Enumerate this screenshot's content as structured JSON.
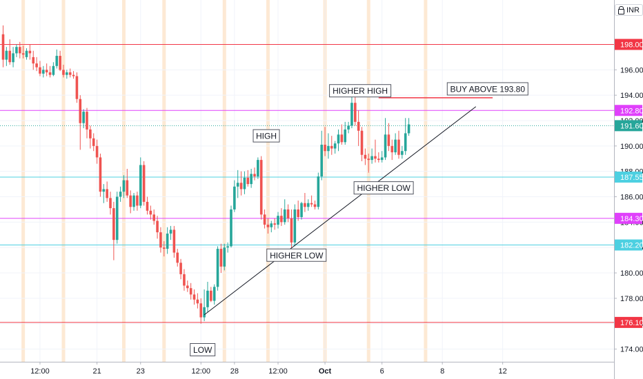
{
  "header": {
    "currency": "INR",
    "currency_icon": "lock-icon"
  },
  "colors": {
    "up": "#26a69a",
    "down": "#ef5350",
    "red_line": "#f23645",
    "magenta_line": "#e040fb",
    "cyan_line": "#4dd0e1",
    "session_band": "#fde9d4",
    "grid": "#f0f3fa",
    "axis_text": "#131722"
  },
  "chart_data": {
    "type": "candlestick",
    "y_range": [
      173,
      201.5
    ],
    "y_ticks": [
      174,
      176,
      178,
      180,
      182,
      184,
      186,
      188,
      190,
      192,
      194,
      196,
      198
    ],
    "y_tick_labels": [
      "174.00",
      "176.00",
      "178.00",
      "180.00",
      "182.00",
      "184.00",
      "186.00",
      "188.00",
      "190.00",
      "192.00",
      "194.00",
      "196.00",
      "198.00"
    ],
    "x_ticks": [
      "12:00",
      "21",
      "23",
      "12:00",
      "28",
      "12:00",
      "Oct",
      "6",
      "8",
      "12"
    ],
    "candles": [
      [
        198.8,
        199.5,
        196.2,
        196.8
      ],
      [
        196.8,
        197.8,
        196.3,
        197.5
      ],
      [
        197.5,
        198.4,
        196.4,
        196.6
      ],
      [
        196.6,
        197.8,
        196.2,
        197.3
      ],
      [
        197.3,
        198.0,
        197.0,
        197.8
      ],
      [
        197.8,
        198.2,
        196.9,
        197.3
      ],
      [
        197.3,
        197.9,
        196.9,
        197.2
      ],
      [
        197.0,
        197.7,
        196.8,
        197.5
      ],
      [
        197.5,
        198.0,
        196.8,
        197.3
      ],
      [
        197.0,
        197.5,
        196.0,
        196.5
      ],
      [
        196.5,
        197.0,
        195.9,
        196.2
      ],
      [
        196.2,
        196.7,
        195.5,
        195.7
      ],
      [
        195.7,
        196.3,
        195.4,
        196.0
      ],
      [
        196.0,
        196.5,
        195.5,
        195.8
      ],
      [
        195.8,
        196.3,
        195.4,
        195.6
      ],
      [
        195.6,
        196.6,
        195.5,
        196.3
      ],
      [
        196.3,
        197.6,
        196.1,
        197.1
      ],
      [
        197.1,
        197.5,
        195.9,
        196.0
      ],
      [
        196.0,
        196.4,
        195.4,
        195.6
      ],
      [
        195.6,
        196.0,
        195.3,
        195.8
      ],
      [
        195.8,
        196.1,
        195.4,
        195.6
      ],
      [
        195.6,
        195.9,
        195.3,
        195.5
      ],
      [
        195.5,
        195.8,
        193.4,
        193.7
      ],
      [
        193.7,
        194.0,
        189.7,
        191.8
      ],
      [
        191.8,
        192.9,
        191.4,
        192.7
      ],
      [
        192.7,
        193.0,
        190.6,
        191.3
      ],
      [
        191.3,
        191.6,
        189.8,
        190.6
      ],
      [
        190.6,
        191.0,
        189.6,
        190.0
      ],
      [
        190.0,
        190.5,
        188.6,
        189.1
      ],
      [
        189.1,
        189.4,
        186.0,
        186.4
      ],
      [
        186.4,
        187.0,
        185.5,
        186.6
      ],
      [
        186.6,
        187.2,
        185.6,
        185.9
      ],
      [
        185.9,
        186.4,
        184.6,
        185.1
      ],
      [
        185.1,
        185.6,
        181.0,
        182.6
      ],
      [
        182.6,
        186.4,
        182.3,
        186.0
      ],
      [
        186.0,
        186.8,
        185.6,
        186.4
      ],
      [
        186.4,
        187.7,
        185.9,
        187.3
      ],
      [
        187.3,
        188.2,
        185.9,
        186.1
      ],
      [
        186.1,
        186.5,
        184.7,
        185.2
      ],
      [
        185.2,
        186.3,
        184.9,
        186.1
      ],
      [
        186.1,
        186.4,
        184.9,
        185.3
      ],
      [
        185.3,
        189.1,
        185.1,
        188.5
      ],
      [
        188.5,
        188.8,
        185.3,
        185.6
      ],
      [
        185.6,
        186.0,
        184.6,
        184.9
      ],
      [
        184.9,
        185.3,
        184.2,
        184.6
      ],
      [
        184.6,
        185.0,
        183.8,
        184.1
      ],
      [
        184.1,
        184.5,
        182.7,
        183.2
      ],
      [
        183.2,
        183.6,
        181.6,
        182.0
      ],
      [
        182.0,
        182.5,
        181.3,
        181.9
      ],
      [
        181.9,
        183.6,
        181.5,
        183.1
      ],
      [
        183.1,
        183.7,
        182.6,
        183.4
      ],
      [
        183.4,
        183.7,
        181.2,
        181.6
      ],
      [
        181.6,
        181.9,
        180.5,
        180.8
      ],
      [
        180.8,
        181.1,
        179.5,
        179.9
      ],
      [
        179.9,
        180.3,
        178.6,
        179.0
      ],
      [
        179.0,
        179.4,
        178.5,
        178.8
      ],
      [
        178.8,
        179.2,
        177.9,
        178.3
      ],
      [
        178.3,
        178.7,
        177.5,
        177.9
      ],
      [
        177.9,
        178.4,
        177.2,
        177.6
      ],
      [
        177.6,
        178.0,
        176.0,
        176.5
      ],
      [
        176.5,
        178.7,
        176.2,
        177.3
      ],
      [
        177.3,
        179.3,
        176.9,
        178.6
      ],
      [
        178.6,
        178.9,
        177.7,
        177.8
      ],
      [
        177.8,
        179.1,
        177.5,
        178.9
      ],
      [
        178.9,
        182.1,
        178.6,
        181.9
      ],
      [
        181.9,
        182.3,
        180.0,
        180.5
      ],
      [
        180.5,
        182.3,
        180.2,
        182.0
      ],
      [
        182.0,
        182.4,
        181.6,
        182.1
      ],
      [
        182.1,
        185.3,
        182.0,
        185.0
      ],
      [
        185.0,
        187.3,
        184.8,
        186.8
      ],
      [
        186.8,
        188.1,
        185.9,
        187.1
      ],
      [
        187.1,
        188.0,
        186.1,
        186.6
      ],
      [
        186.6,
        188.0,
        186.2,
        187.5
      ],
      [
        187.5,
        188.1,
        186.8,
        187.0
      ],
      [
        187.0,
        188.2,
        186.7,
        187.8
      ],
      [
        187.8,
        188.3,
        187.3,
        187.6
      ],
      [
        187.6,
        189.1,
        187.4,
        188.9
      ],
      [
        188.9,
        189.2,
        184.2,
        184.6
      ],
      [
        184.6,
        185.0,
        183.5,
        183.8
      ],
      [
        183.8,
        184.3,
        183.1,
        183.6
      ],
      [
        183.6,
        184.1,
        183.2,
        183.9
      ],
      [
        183.9,
        184.3,
        183.4,
        183.8
      ],
      [
        183.8,
        184.8,
        183.5,
        184.5
      ],
      [
        184.5,
        185.1,
        183.7,
        184.0
      ],
      [
        184.0,
        185.8,
        183.8,
        185.0
      ],
      [
        185.0,
        185.4,
        184.0,
        184.3
      ],
      [
        184.3,
        185.0,
        182.0,
        182.4
      ],
      [
        182.4,
        185.4,
        182.1,
        185.0
      ],
      [
        185.0,
        185.7,
        184.1,
        184.4
      ],
      [
        184.4,
        185.6,
        184.2,
        185.5
      ],
      [
        185.5,
        186.3,
        184.8,
        185.2
      ],
      [
        185.2,
        185.8,
        184.9,
        185.5
      ],
      [
        185.5,
        186.1,
        185.2,
        185.4
      ],
      [
        185.4,
        185.7,
        185.0,
        185.2
      ],
      [
        185.2,
        187.9,
        185.0,
        187.6
      ],
      [
        187.6,
        191.2,
        187.3,
        190.1
      ],
      [
        190.1,
        191.5,
        189.2,
        189.6
      ],
      [
        189.6,
        191.0,
        189.0,
        190.0
      ],
      [
        190.0,
        190.8,
        189.3,
        189.8
      ],
      [
        189.8,
        190.4,
        189.4,
        190.2
      ],
      [
        190.2,
        191.3,
        189.6,
        190.9
      ],
      [
        190.9,
        191.7,
        190.1,
        190.3
      ],
      [
        190.3,
        191.9,
        190.1,
        191.3
      ],
      [
        191.3,
        191.9,
        191.0,
        191.6
      ],
      [
        191.6,
        193.9,
        191.4,
        193.4
      ],
      [
        193.4,
        194.0,
        191.6,
        191.9
      ],
      [
        191.9,
        192.8,
        190.0,
        191.2
      ],
      [
        191.2,
        191.5,
        188.8,
        189.3
      ],
      [
        189.3,
        189.8,
        188.5,
        189.0
      ],
      [
        189.0,
        189.4,
        187.9,
        188.9
      ],
      [
        188.9,
        189.8,
        188.6,
        189.2
      ],
      [
        189.2,
        190.5,
        188.7,
        189.0
      ],
      [
        189.0,
        189.5,
        188.7,
        188.9
      ],
      [
        188.9,
        189.6,
        188.7,
        189.1
      ],
      [
        189.1,
        192.2,
        188.9,
        190.9
      ],
      [
        190.9,
        191.8,
        189.6,
        190.0
      ],
      [
        190.0,
        190.5,
        188.9,
        189.5
      ],
      [
        189.5,
        191.0,
        189.3,
        190.5
      ],
      [
        190.5,
        191.2,
        189.0,
        189.3
      ],
      [
        189.3,
        190.0,
        189.0,
        189.6
      ],
      [
        189.6,
        192.2,
        189.3,
        191.0
      ],
      [
        191.0,
        192.2,
        190.8,
        191.7
      ]
    ],
    "session_bands": [
      6,
      18,
      36,
      48,
      66,
      79,
      96,
      109,
      126
    ],
    "x_tick_candles": [
      11,
      28,
      41,
      59,
      69,
      82,
      96,
      113,
      131,
      149
    ],
    "horizontal_lines": [
      {
        "price": 198.0,
        "label": "198.00",
        "color": "red"
      },
      {
        "price": 192.8,
        "label": "192.80",
        "color": "magenta"
      },
      {
        "price": 191.6,
        "label": "191.60",
        "color": "close",
        "style": "dotted"
      },
      {
        "price": 187.55,
        "label": "187.55",
        "color": "cyan"
      },
      {
        "price": 184.3,
        "label": "184.30",
        "color": "magenta"
      },
      {
        "price": 182.2,
        "label": "182.20",
        "color": "cyan"
      },
      {
        "price": 176.1,
        "label": "176.10",
        "color": "red"
      }
    ],
    "trendline": {
      "from": [
        60,
        176.7
      ],
      "to": [
        141,
        193.1
      ]
    },
    "resistance_segment": {
      "from": [
        112,
        193.8
      ],
      "to": [
        146,
        193.8
      ]
    },
    "annotations": [
      {
        "text": "LOW",
        "candle": 59.5,
        "price": 173.95
      },
      {
        "text": "HIGH",
        "candle": 78.5,
        "price": 190.8
      },
      {
        "text": "HIGHER LOW",
        "candle": 87.5,
        "price": 181.4
      },
      {
        "text": "HIGHER HIGH",
        "candle": 106.5,
        "price": 194.35
      },
      {
        "text": "HIGHER LOW",
        "candle": 113.5,
        "price": 186.7
      },
      {
        "text": "BUY ABOVE 193.80",
        "candle": 144.5,
        "price": 194.5
      }
    ]
  }
}
